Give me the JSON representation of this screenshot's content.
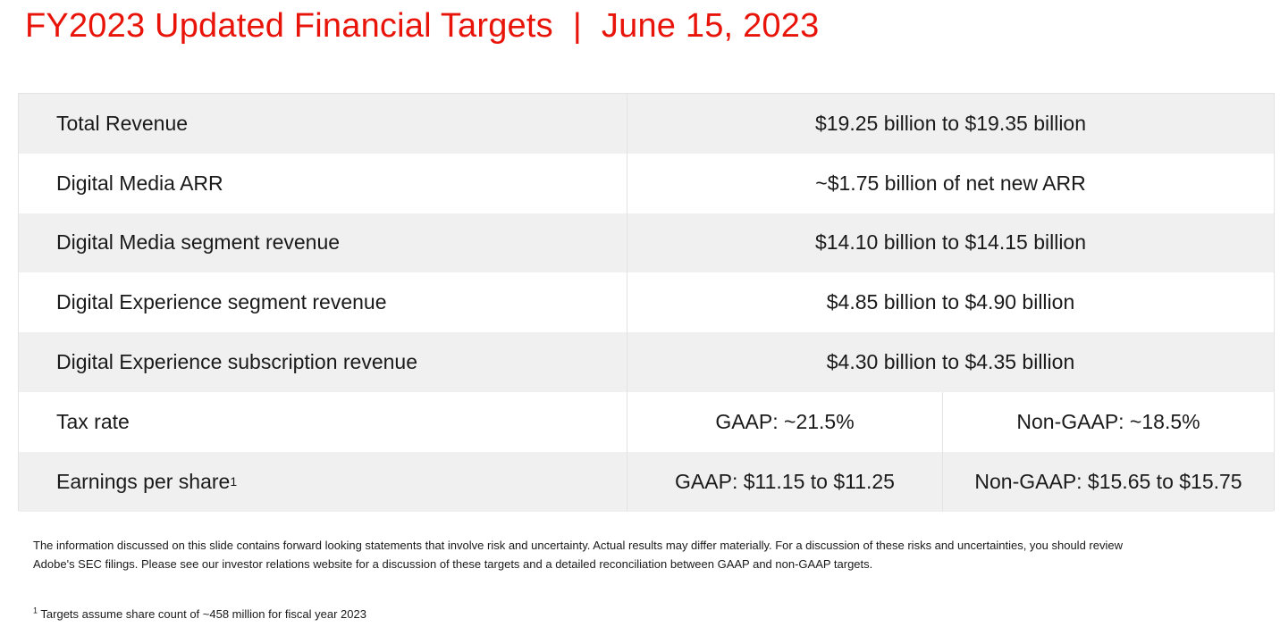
{
  "title": {
    "left": "FY2023 Updated Financial Targets",
    "separator": "|",
    "right": "June 15, 2023"
  },
  "rows": [
    {
      "label": "Total Revenue",
      "value": "$19.25 billion to $19.35 billion"
    },
    {
      "label": "Digital Media ARR",
      "value": "~$1.75 billion of net new ARR"
    },
    {
      "label": "Digital Media segment revenue",
      "value": "$14.10 billion to $14.15 billion"
    },
    {
      "label": "Digital Experience segment revenue",
      "value": "$4.85 billion to $4.90 billion"
    },
    {
      "label": "Digital Experience subscription revenue",
      "value": "$4.30 billion to $4.35 billion"
    }
  ],
  "tax_rate": {
    "label": "Tax rate",
    "gaap": "GAAP: ~21.5%",
    "non_gaap": "Non-GAAP: ~18.5%"
  },
  "eps": {
    "label": "Earnings per share",
    "sup": "1",
    "gaap": "GAAP: $11.15 to $11.25",
    "non_gaap": "Non-GAAP: $15.65 to $15.75"
  },
  "disclaimer": "The information discussed on this slide contains forward looking statements that involve risk and uncertainty. Actual results may differ materially. For a discussion of these risks and uncertainties, you should review Adobe's SEC filings. Please see our investor relations website for a discussion of these targets and a detailed reconciliation between GAAP and non-GAAP targets.",
  "footnote": {
    "marker": "1",
    "text": "Targets assume share count of ~458 million for fiscal year 2023"
  },
  "colors": {
    "title": "#e8140a",
    "row_shade": "#f0f0f0"
  }
}
